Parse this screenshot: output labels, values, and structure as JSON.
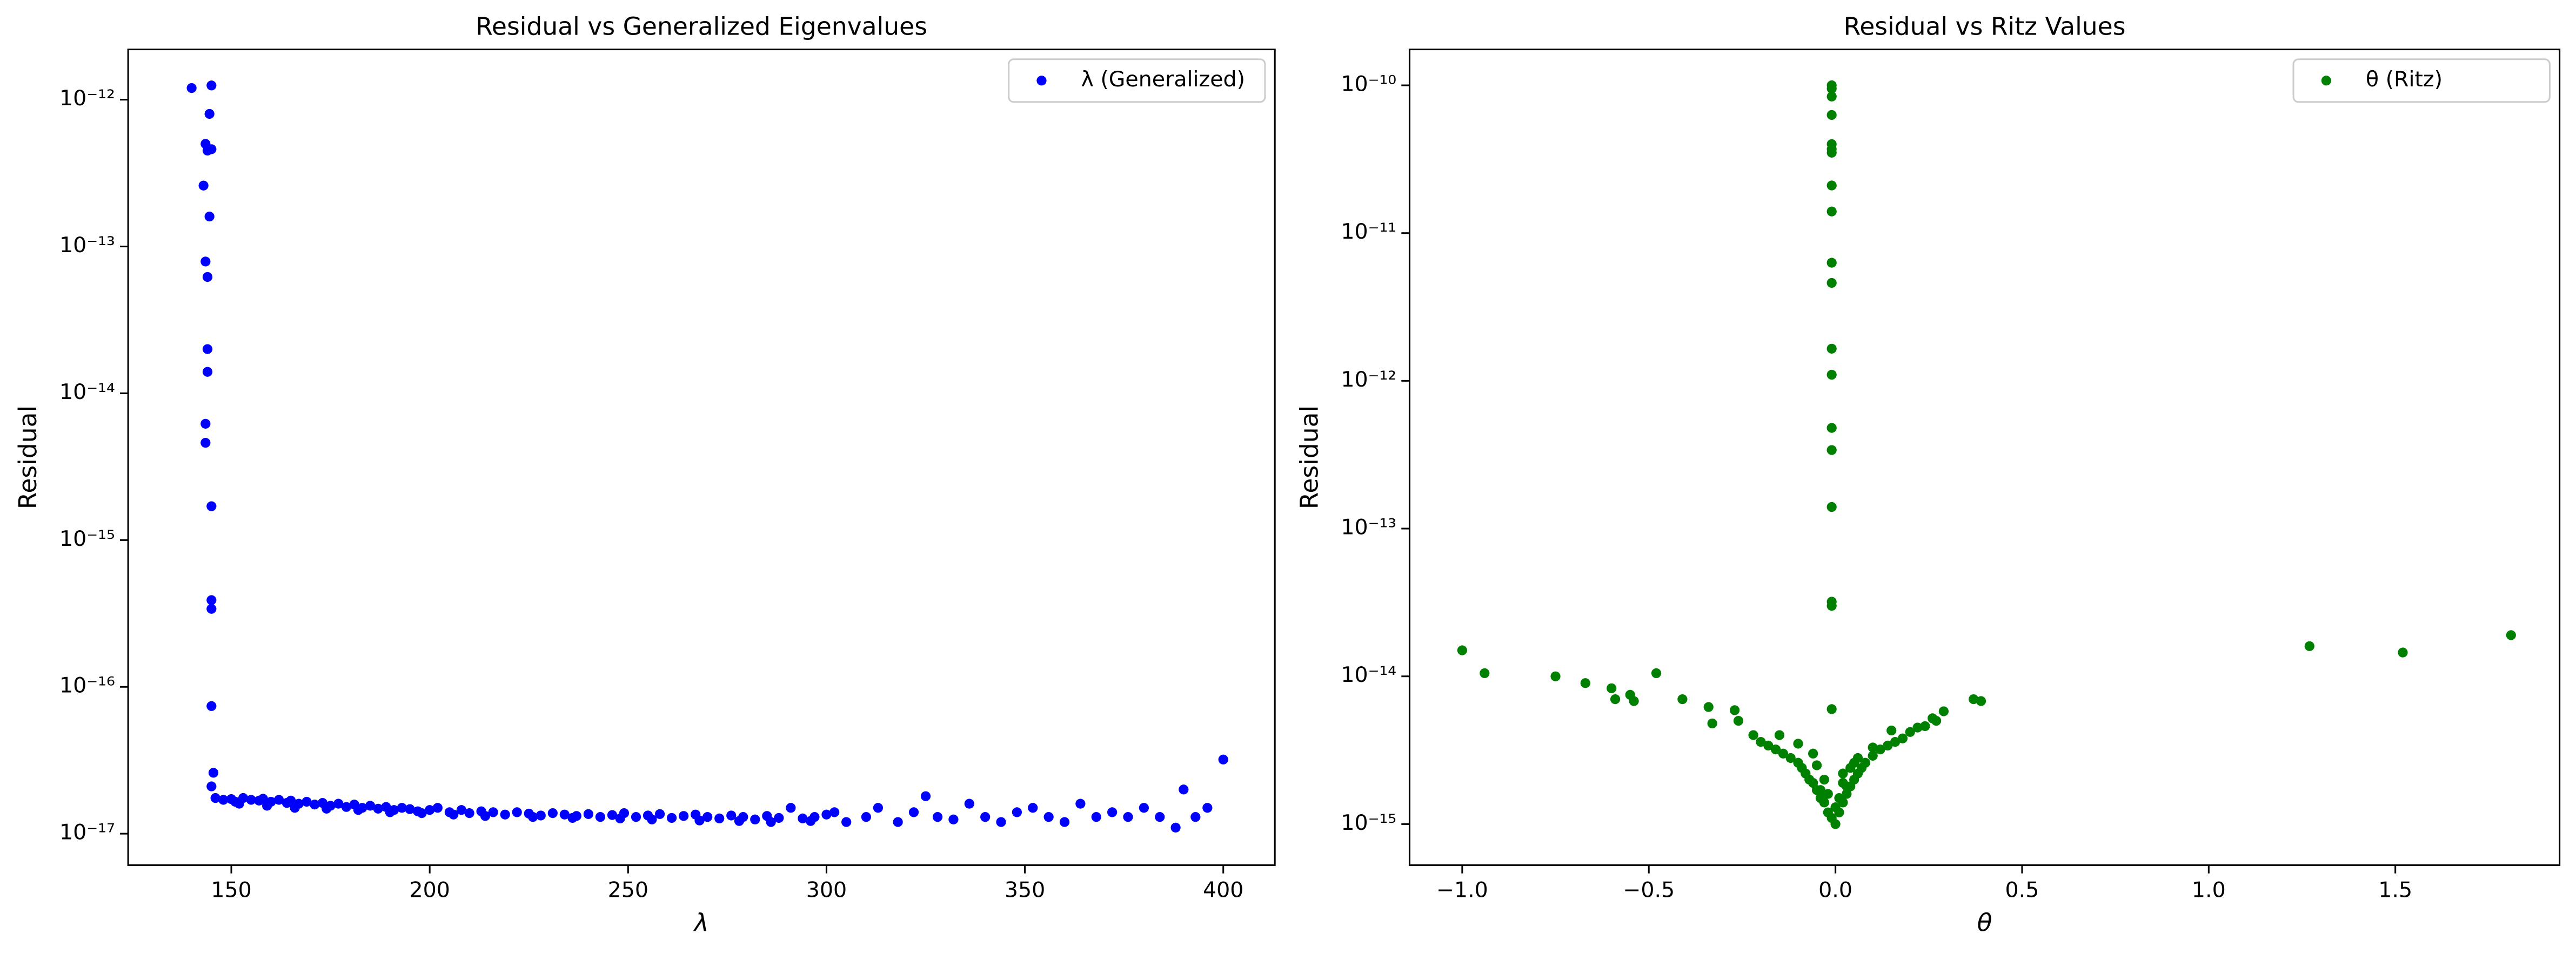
{
  "chart_data": [
    {
      "type": "scatter",
      "title": "Residual vs Generalized Eigenvalues",
      "x_label": "λ",
      "y_label": "Residual",
      "yscale": "log",
      "legend": "upper right",
      "xlim": [
        124,
        413
      ],
      "xticks": [
        150,
        200,
        250,
        300,
        350,
        400
      ],
      "ylim": [
        6.1e-18,
        2.2e-12
      ],
      "yticks": [
        {
          "value": 1e-17,
          "label": "10⁻¹⁷"
        },
        {
          "value": 1e-16,
          "label": "10⁻¹⁶"
        },
        {
          "value": 1e-15,
          "label": "10⁻¹⁵"
        },
        {
          "value": 1e-14,
          "label": "10⁻¹⁴"
        },
        {
          "value": 1e-13,
          "label": "10⁻¹³"
        },
        {
          "value": 1e-12,
          "label": "10⁻¹²"
        }
      ],
      "series": [
        {
          "name": "λ (Generalized)",
          "color": "#0000ff",
          "x": [
            140,
            145,
            144.5,
            143.5,
            144,
            145,
            143,
            144.5,
            143.5,
            144,
            144,
            144,
            143.5,
            143.5,
            145,
            145,
            145,
            145,
            145.5,
            145,
            146,
            148,
            150,
            151,
            153,
            155,
            157,
            158,
            160,
            162,
            164,
            165,
            167,
            169,
            171,
            173,
            175,
            177,
            179,
            181,
            183,
            185,
            187,
            189,
            191,
            193,
            195,
            197,
            200,
            202,
            205,
            208,
            210,
            213,
            216,
            219,
            222,
            225,
            228,
            231,
            234,
            237,
            240,
            243,
            246,
            249,
            252,
            255,
            258,
            261,
            264,
            267,
            270,
            273,
            276,
            279,
            282,
            285,
            288,
            291,
            294,
            297,
            300,
            152,
            159,
            166,
            174,
            182,
            190,
            198,
            206,
            214,
            226,
            236,
            248,
            256,
            268,
            278,
            286,
            296,
            302,
            305,
            310,
            313,
            318,
            322,
            325,
            328,
            332,
            336,
            340,
            344,
            348,
            352,
            356,
            360,
            364,
            368,
            372,
            376,
            380,
            384,
            388,
            390,
            393,
            396,
            400
          ],
          "values": [
            1.2e-12,
            1.25e-12,
            8e-13,
            5e-13,
            4.5e-13,
            4.6e-13,
            2.6e-13,
            1.6e-13,
            7.9e-14,
            6.2e-14,
            2e-14,
            1.4e-14,
            6.2e-15,
            4.6e-15,
            1.7e-15,
            3.9e-16,
            3.4e-16,
            7.4e-17,
            2.6e-17,
            2.1e-17,
            1.75e-17,
            1.7e-17,
            1.72e-17,
            1.65e-17,
            1.75e-17,
            1.7e-17,
            1.68e-17,
            1.73e-17,
            1.65e-17,
            1.7e-17,
            1.62e-17,
            1.68e-17,
            1.6e-17,
            1.65e-17,
            1.58e-17,
            1.62e-17,
            1.55e-17,
            1.6e-17,
            1.52e-17,
            1.58e-17,
            1.5e-17,
            1.55e-17,
            1.48e-17,
            1.52e-17,
            1.45e-17,
            1.5e-17,
            1.47e-17,
            1.42e-17,
            1.45e-17,
            1.5e-17,
            1.4e-17,
            1.45e-17,
            1.38e-17,
            1.42e-17,
            1.4e-17,
            1.35e-17,
            1.4e-17,
            1.37e-17,
            1.33e-17,
            1.38e-17,
            1.35e-17,
            1.32e-17,
            1.36e-17,
            1.3e-17,
            1.34e-17,
            1.38e-17,
            1.3e-17,
            1.33e-17,
            1.36e-17,
            1.28e-17,
            1.32e-17,
            1.35e-17,
            1.3e-17,
            1.27e-17,
            1.33e-17,
            1.3e-17,
            1.25e-17,
            1.32e-17,
            1.28e-17,
            1.5e-17,
            1.27e-17,
            1.3e-17,
            1.35e-17,
            1.6e-17,
            1.55e-17,
            1.5e-17,
            1.48e-17,
            1.45e-17,
            1.4e-17,
            1.38e-17,
            1.35e-17,
            1.32e-17,
            1.3e-17,
            1.28e-17,
            1.27e-17,
            1.25e-17,
            1.23e-17,
            1.22e-17,
            1.2e-17,
            1.22e-17,
            1.4e-17,
            1.2e-17,
            1.3e-17,
            1.5e-17,
            1.2e-17,
            1.4e-17,
            1.8e-17,
            1.3e-17,
            1.25e-17,
            1.6e-17,
            1.3e-17,
            1.2e-17,
            1.4e-17,
            1.5e-17,
            1.3e-17,
            1.2e-17,
            1.6e-17,
            1.3e-17,
            1.4e-17,
            1.3e-17,
            1.5e-17,
            1.3e-17,
            1.1e-17,
            2e-17,
            1.3e-17,
            1.5e-17,
            3.2e-17
          ]
        }
      ]
    },
    {
      "type": "scatter",
      "title": "Residual vs Ritz Values",
      "x_label": "θ",
      "y_label": "Residual",
      "yscale": "log",
      "legend": "upper right",
      "xlim": [
        -1.141,
        1.94
      ],
      "xticks": [
        {
          "value": -1.0,
          "label": "−1.0"
        },
        {
          "value": -0.5,
          "label": "−0.5"
        },
        {
          "value": 0,
          "label": "0.0"
        },
        {
          "value": 0.5,
          "label": "0.5"
        },
        {
          "value": 1.0,
          "label": "1.0"
        },
        {
          "value": 1.5,
          "label": "1.5"
        }
      ],
      "ylim": [
        5.27e-16,
        1.75e-10
      ],
      "yticks": [
        {
          "value": 1e-15,
          "label": "10⁻¹⁵"
        },
        {
          "value": 1e-14,
          "label": "10⁻¹⁴"
        },
        {
          "value": 1e-13,
          "label": "10⁻¹³"
        },
        {
          "value": 1e-12,
          "label": "10⁻¹²"
        },
        {
          "value": 1e-11,
          "label": "10⁻¹¹"
        },
        {
          "value": 1e-10,
          "label": "10⁻¹⁰"
        }
      ],
      "series": [
        {
          "name": "θ (Ritz)",
          "color": "#008000",
          "x": [
            -0.01,
            -0.01,
            -0.01,
            -0.01,
            -0.01,
            -0.01,
            -0.01,
            -0.01,
            -0.01,
            -0.01,
            -0.01,
            -0.01,
            -0.01,
            -0.01,
            -0.01,
            -0.01,
            -0.01,
            -0.01,
            -0.01,
            -1.0,
            -0.94,
            -0.75,
            -0.67,
            -0.6,
            -0.59,
            -0.55,
            -0.54,
            -0.48,
            -0.41,
            -0.34,
            -0.33,
            -0.27,
            -0.26,
            1.27,
            1.52,
            1.81,
            0.37,
            0.39,
            0.29,
            0.27,
            0.22,
            -0.22,
            -0.2,
            -0.18,
            -0.16,
            -0.14,
            -0.12,
            -0.1,
            -0.09,
            -0.08,
            -0.07,
            -0.06,
            -0.05,
            -0.04,
            -0.03,
            -0.02,
            0,
            0.01,
            0.02,
            0.03,
            0.04,
            0.05,
            0.06,
            0.07,
            0.08,
            0.1,
            0.12,
            0.14,
            0.16,
            0.18,
            0.2,
            0.24,
            0.26,
            -0.05,
            -0.03,
            -0.02,
            0,
            0.01,
            0.02,
            0.03,
            0.05,
            -0.04,
            -0.01,
            0.02,
            0.04,
            -0.06,
            0.06,
            -0.1,
            0.1,
            -0.15,
            0.15
          ],
          "values": [
            1e-10,
            9.5e-11,
            8.4e-11,
            6.3e-11,
            4e-11,
            3.7e-11,
            3.5e-11,
            2.1e-11,
            1.4e-11,
            6.3e-12,
            4.6e-12,
            1.65e-12,
            1.1e-12,
            4.8e-13,
            3.4e-13,
            1.4e-13,
            3.2e-14,
            3e-14,
            6e-15,
            1.5e-14,
            1.05e-14,
            1e-14,
            9e-15,
            8.3e-15,
            7e-15,
            7.5e-15,
            6.8e-15,
            1.05e-14,
            7e-15,
            6.2e-15,
            4.8e-15,
            5.9e-15,
            5e-15,
            1.6e-14,
            1.45e-14,
            1.9e-14,
            7e-15,
            6.8e-15,
            5.8e-15,
            5e-15,
            4.5e-15,
            4e-15,
            3.6e-15,
            3.4e-15,
            3.2e-15,
            3e-15,
            2.8e-15,
            2.6e-15,
            2.4e-15,
            2.2e-15,
            2e-15,
            1.9e-15,
            1.7e-15,
            1.5e-15,
            1.4e-15,
            1.2e-15,
            1e-15,
            1.2e-15,
            1.4e-15,
            1.6e-15,
            1.8e-15,
            2e-15,
            2.2e-15,
            2.4e-15,
            2.6e-15,
            2.9e-15,
            3.2e-15,
            3.4e-15,
            3.6e-15,
            3.8e-15,
            4.2e-15,
            4.6e-15,
            5.2e-15,
            2.5e-15,
            2e-15,
            1.6e-15,
            1.3e-15,
            1.5e-15,
            2.2e-15,
            1.8e-15,
            2.6e-15,
            1.7e-15,
            1.1e-15,
            1.9e-15,
            2.4e-15,
            3e-15,
            2.8e-15,
            3.5e-15,
            3.3e-15,
            4e-15,
            4.3e-15
          ]
        }
      ]
    }
  ]
}
